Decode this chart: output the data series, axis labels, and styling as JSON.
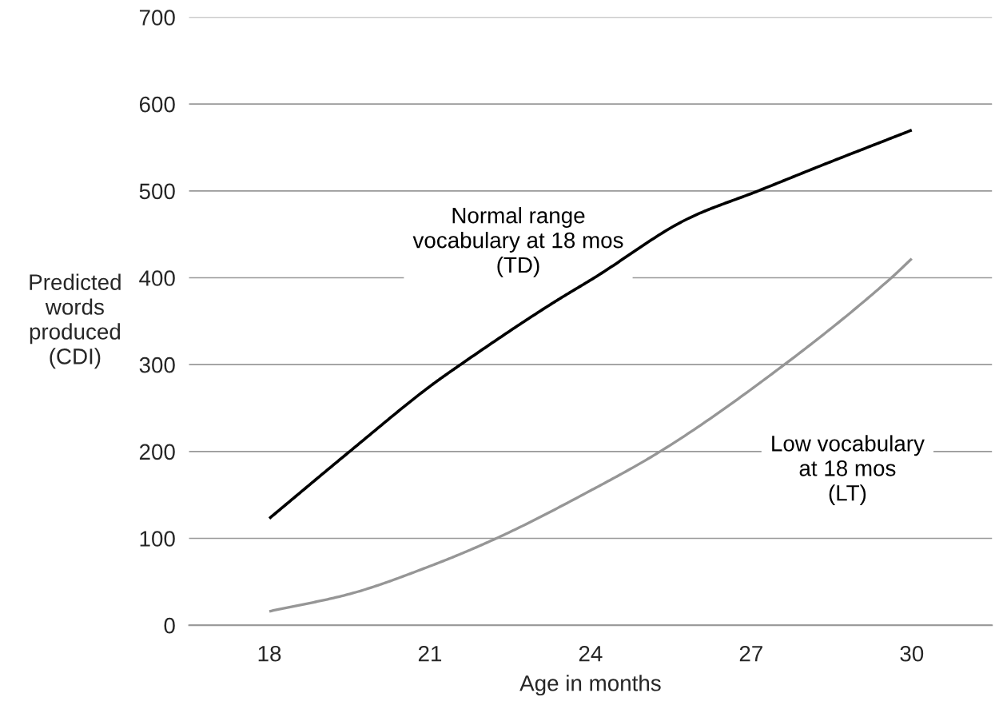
{
  "chart_data": {
    "type": "line",
    "xlabel": "Age in months",
    "ylabel": "Predicted\nwords\nproduced\n(CDI)",
    "series": [
      {
        "name": "Normal range\nvocabulary at 18 mos\n(TD)",
        "color": "#000000",
        "x": [
          18,
          19.5,
          21,
          21.57,
          23.27,
          24.07,
          25.85,
          27.13,
          28.3,
          30
        ],
        "values": [
          123,
          200,
          275,
          300,
          370,
          400,
          469,
          500,
          529,
          570
        ]
      },
      {
        "name": "Low vocabulary\nat 18 mos\n(LT)",
        "color": "#969696",
        "x": [
          18,
          19.5,
          21,
          22.24,
          24,
          25.3,
          27.62,
          29.62,
          30
        ],
        "values": [
          16,
          36,
          68,
          100,
          155,
          200,
          300,
          400,
          422
        ]
      }
    ],
    "xlim": [
      16.5,
      31.5
    ],
    "xticks": [
      18,
      21,
      24,
      27,
      30
    ],
    "ylim": [
      0,
      700
    ],
    "yticks": [
      0,
      100,
      200,
      300,
      400,
      500,
      600,
      700
    ],
    "grid": "y",
    "legend": false,
    "marker": "none",
    "line_style": "solid"
  }
}
